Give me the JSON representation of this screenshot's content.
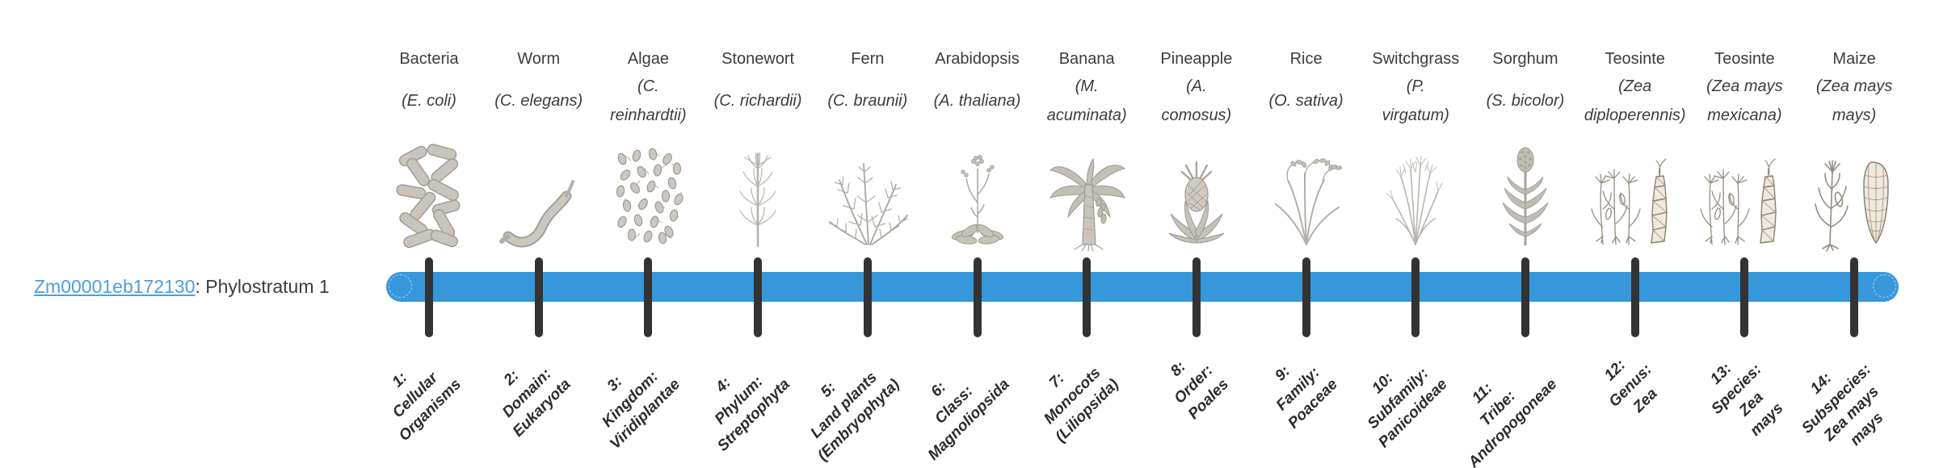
{
  "gene": {
    "id": "Zm00001eb172130",
    "suffix": ": Phylostratum 1"
  },
  "theme": {
    "bar-color": "#3697da",
    "tick-color": "#333333",
    "link-color": "#4aa0dc",
    "background": "#ffffff"
  },
  "columns": [
    {
      "name": "Bacteria",
      "species_lines": [
        "(E. coli)"
      ],
      "icon": "bacteria-icon",
      "label_lines": [
        "1:",
        "Cellular",
        "Organisms"
      ]
    },
    {
      "name": "Worm",
      "species_lines": [
        "(C. elegans)"
      ],
      "icon": "worm-icon",
      "label_lines": [
        "2:",
        "Domain:",
        "Eukaryota"
      ]
    },
    {
      "name": "Algae",
      "species_lines": [
        "(C.",
        "reinhardtii)"
      ],
      "icon": "algae-icon",
      "label_lines": [
        "3:",
        "Kingdom:",
        "Viridiplantae"
      ]
    },
    {
      "name": "Stonewort",
      "species_lines": [
        "(C. richardii)"
      ],
      "icon": "stonewort-icon",
      "label_lines": [
        "4:",
        "Phylum:",
        "Streptophyta"
      ]
    },
    {
      "name": "Fern",
      "species_lines": [
        "(C. braunii)"
      ],
      "icon": "fern-icon",
      "label_lines": [
        "5:",
        "Land plants",
        "(Embryophyta)"
      ]
    },
    {
      "name": "Arabidopsis",
      "species_lines": [
        "(A. thaliana)"
      ],
      "icon": "arabidopsis-icon",
      "label_lines": [
        "6:",
        "Class:",
        "Magnoliopsida"
      ]
    },
    {
      "name": "Banana",
      "species_lines": [
        "(M.",
        "acuminata)"
      ],
      "icon": "banana-icon",
      "label_lines": [
        "7:",
        "Monocots",
        "(Liliopsida)"
      ]
    },
    {
      "name": "Pineapple",
      "species_lines": [
        "(A.",
        "comosus)"
      ],
      "icon": "pineapple-icon",
      "label_lines": [
        "8:",
        "Order:",
        "Poales"
      ]
    },
    {
      "name": "Rice",
      "species_lines": [
        "(O. sativa)"
      ],
      "icon": "rice-icon",
      "label_lines": [
        "9:",
        "Family:",
        "Poaceae"
      ]
    },
    {
      "name": "Switchgrass",
      "species_lines": [
        "(P.",
        "virgatum)"
      ],
      "icon": "switchgrass-icon",
      "label_lines": [
        "10:",
        "Subfamily:",
        "Panicoideae"
      ]
    },
    {
      "name": "Sorghum",
      "species_lines": [
        "(S. bicolor)"
      ],
      "icon": "sorghum-icon",
      "label_lines": [
        "11:",
        "Tribe:",
        "Andropogoneae"
      ]
    },
    {
      "name": "Teosinte",
      "species_lines": [
        "(Zea",
        "diploperennis)"
      ],
      "icon": "teosinte-icon",
      "label_lines": [
        "12:",
        "Genus:",
        "Zea"
      ]
    },
    {
      "name": "Teosinte",
      "species_lines": [
        "(Zea mays",
        "mexicana)"
      ],
      "icon": "teosinte-icon",
      "label_lines": [
        "13:",
        "Species:",
        "Zea",
        "mays"
      ]
    },
    {
      "name": "Maize",
      "species_lines": [
        "(Zea mays",
        "mays)"
      ],
      "icon": "maize-icon",
      "label_lines": [
        "14:",
        "Subspecies:",
        "Zea mays",
        "mays"
      ]
    }
  ]
}
